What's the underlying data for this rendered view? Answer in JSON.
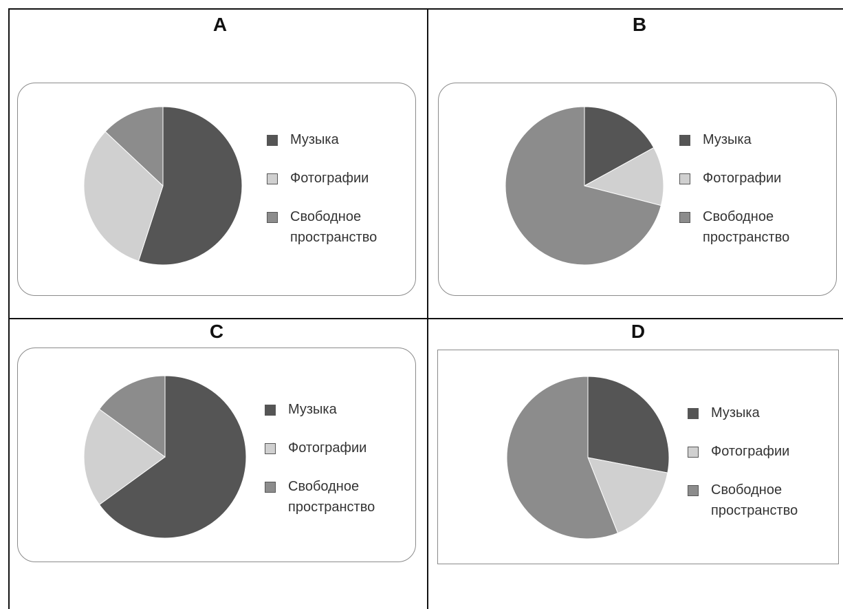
{
  "colors": {
    "music": "#555555",
    "photos": "#d0d0d0",
    "free": "#8c8c8c"
  },
  "chart_data": [
    {
      "type": "pie",
      "title": "A",
      "categories": [
        "Музыка",
        "Фотографии",
        "Свободное пространство"
      ],
      "values": [
        55,
        32,
        13
      ]
    },
    {
      "type": "pie",
      "title": "B",
      "categories": [
        "Музыка",
        "Фотографии",
        "Свободное пространство"
      ],
      "values": [
        17,
        12,
        71
      ]
    },
    {
      "type": "pie",
      "title": "C",
      "categories": [
        "Музыка",
        "Фотографии",
        "Свободное пространство"
      ],
      "values": [
        65,
        20,
        15
      ]
    },
    {
      "type": "pie",
      "title": "D",
      "categories": [
        "Музыка",
        "Фотографии",
        "Свободное пространство"
      ],
      "values": [
        28,
        16,
        56
      ]
    }
  ]
}
